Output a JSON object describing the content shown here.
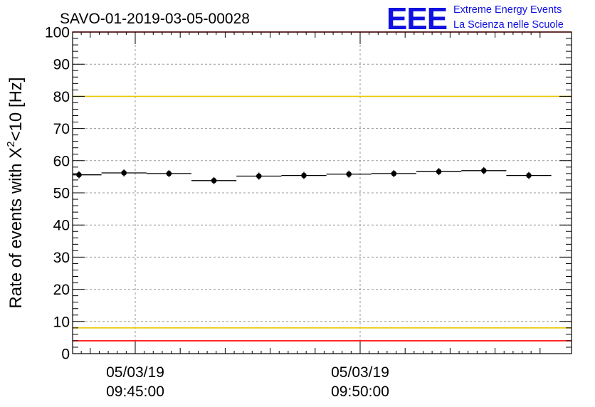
{
  "chart_data": {
    "type": "scatter",
    "title": "SAVO-01-2019-03-05-00028",
    "ylabel_parts": [
      "Rate of events with ",
      "X",
      "2",
      "<10 [Hz]"
    ],
    "ylim": [
      0,
      100
    ],
    "yticks": [
      "0",
      "10",
      "20",
      "30",
      "40",
      "50",
      "60",
      "70",
      "80",
      "90",
      "100"
    ],
    "xticks": [
      {
        "date": "05/03/19",
        "time": "09:45:00"
      },
      {
        "date": "05/03/19",
        "time": "09:50:00"
      }
    ],
    "points": [
      {
        "x": "09:43:45",
        "y": 55.6
      },
      {
        "x": "09:44:45",
        "y": 56.2
      },
      {
        "x": "09:45:45",
        "y": 56.0
      },
      {
        "x": "09:46:45",
        "y": 53.8
      },
      {
        "x": "09:47:45",
        "y": 55.2
      },
      {
        "x": "09:48:45",
        "y": 55.4
      },
      {
        "x": "09:49:45",
        "y": 55.8
      },
      {
        "x": "09:50:45",
        "y": 56.0
      },
      {
        "x": "09:51:45",
        "y": 56.6
      },
      {
        "x": "09:52:45",
        "y": 56.9
      },
      {
        "x": "09:53:45",
        "y": 55.4
      }
    ],
    "reference_lines": [
      {
        "y": 100,
        "color": "#ff0000"
      },
      {
        "y": 80,
        "color": "#e8c800"
      },
      {
        "y": 8,
        "color": "#e8c800"
      },
      {
        "y": 4,
        "color": "#ff0000"
      }
    ],
    "grid": true
  },
  "logo": {
    "mark": "EEE",
    "line1": "Extreme Energy Events",
    "line2": "La Scienza nelle Scuole"
  }
}
